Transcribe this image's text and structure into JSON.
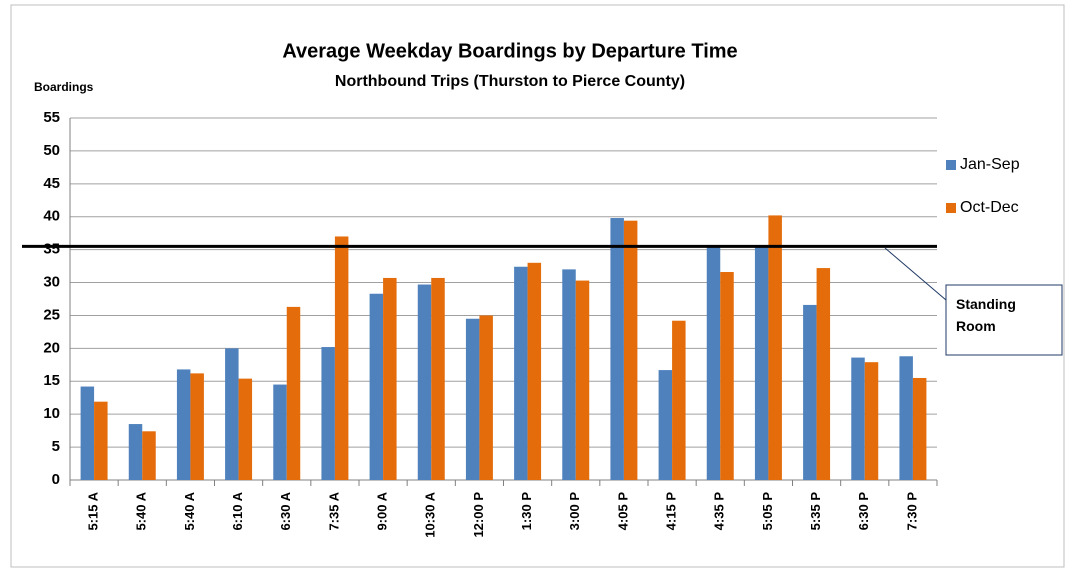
{
  "chart_data": {
    "type": "bar",
    "title": "Average Weekday Boardings by Departure Time",
    "subtitle": "Northbound Trips (Thurston to Pierce County)",
    "y_label": "Boardings",
    "categories": [
      "5:15 A",
      "5:40 A",
      "5:40 A",
      "6:10 A",
      "6:30 A",
      "7:35 A",
      "9:00 A",
      "10:30 A",
      "12:00 P",
      "1:30 P",
      "3:00 P",
      "4:05 P",
      "4:15 P",
      "4:35 P",
      "5:05 P",
      "5:35 P",
      "6:30 P",
      "7:30 P"
    ],
    "series": [
      {
        "name": "Jan-Sep",
        "color": "#4f81bd",
        "values": [
          14.2,
          8.5,
          16.8,
          20,
          14.5,
          20.2,
          28.3,
          29.7,
          24.5,
          32.4,
          32,
          39.8,
          16.7,
          35.5,
          35.5,
          26.6,
          18.6,
          18.8
        ]
      },
      {
        "name": "Oct-Dec",
        "color": "#e46c0a",
        "values": [
          11.9,
          7.4,
          16.2,
          15.4,
          26.3,
          37,
          30.7,
          30.7,
          25,
          33,
          30.3,
          39.4,
          24.2,
          31.6,
          40.2,
          32.2,
          17.9,
          15.5
        ]
      }
    ],
    "ylim": [
      0,
      55
    ],
    "yticks": [
      0,
      5,
      10,
      15,
      20,
      25,
      30,
      35,
      40,
      45,
      50,
      55
    ],
    "grid": true,
    "legend": "right",
    "reference_line": {
      "value": 35.5,
      "label": "Standing Room"
    }
  }
}
